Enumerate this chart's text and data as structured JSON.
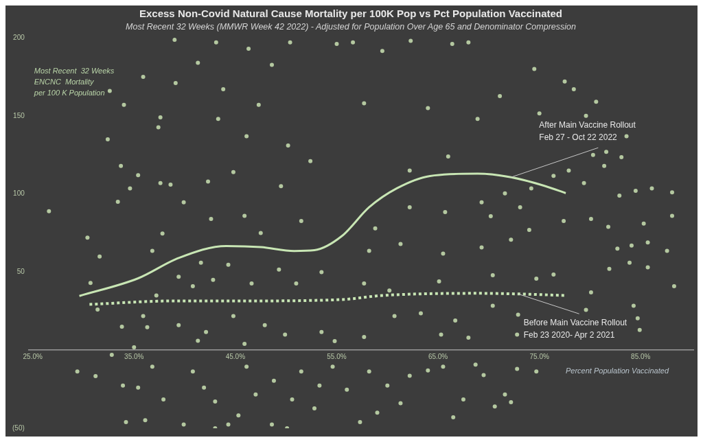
{
  "chart_data": {
    "type": "scatter",
    "title": "Excess Non-Covid Natural Cause Mortality per 100K Pop vs Pct Population Vaccinated",
    "subtitle": "Most Recent 32 Weeks (MMWR Week 42 2022) - Adjusted for Population Over Age 65 and Denominator Compression",
    "xlabel": "Percent Population Vaccinated",
    "ylabel": "Most Recent  32 Weeks\nENCNC  Mortality\nper 100 K Population",
    "xlim": [
      24.6,
      90.2
    ],
    "ylim": [
      -50,
      200
    ],
    "xticks": [
      {
        "value": 25,
        "label": "25.0%"
      },
      {
        "value": 35,
        "label": "35.0%"
      },
      {
        "value": 45,
        "label": "45.0%"
      },
      {
        "value": 55,
        "label": "55.0%"
      },
      {
        "value": 65,
        "label": "65.0%"
      },
      {
        "value": 75,
        "label": "75.0%"
      },
      {
        "value": 85,
        "label": "85.0%"
      }
    ],
    "yticks": [
      {
        "value": -50,
        "label": "(50)"
      },
      50,
      100,
      150,
      200
    ],
    "grid": false,
    "legend": false,
    "series": [
      {
        "type": "scatter",
        "marker": "circle",
        "color": "#b4c8a0",
        "x": [
          26.6,
          32.4,
          32.6,
          34.0,
          35.9,
          39.0,
          39.1,
          43.1,
          46.3,
          50.4,
          55.0,
          30.4,
          31.6,
          30.7,
          31.4,
          33.8,
          33.4,
          34.6,
          35.4,
          33.7,
          37.4,
          37.6,
          38.6,
          37.6,
          41.3,
          43.8,
          48.6,
          47.3,
          43.3,
          46.1,
          50.2,
          52.4,
          44.8,
          49.5,
          42.3,
          39.9,
          42.6,
          45.9,
          51.5,
          47.5,
          37.8,
          36.8,
          41.6,
          44.3,
          49.3,
          53.5,
          39.4,
          42.8,
          46.6,
          51.0,
          37.2,
          40.8,
          35.9,
          39.4,
          42.1,
          44.8,
          47.9,
          49.9,
          53.5,
          54.8,
          36.3,
          35.0,
          41.3,
          45.9,
          56.6,
          62.3,
          66.4,
          68.0,
          59.5,
          74.5,
          77.5,
          78.4,
          80.6,
          57.7,
          64.0,
          71.1,
          75.0,
          79.6,
          83.6,
          81.6,
          83.1,
          80.3,
          81.4,
          77.9,
          76.4,
          86.1,
          88.1,
          84.5,
          82.9,
          79.4,
          88.1,
          85.3,
          81.8,
          80.1,
          77.4,
          87.6,
          85.7,
          84.1,
          82.7,
          83.9,
          85.7,
          81.9,
          88.3,
          80.1,
          79.6,
          84.3,
          84.7,
          84.9,
          68.9,
          66.0,
          62.2,
          74.2,
          71.6,
          69.3,
          65.7,
          62.2,
          58.8,
          70.2,
          73.1,
          74.0,
          72.2,
          69.3,
          65.5,
          61.3,
          58.2,
          76.4,
          74.7,
          70.4,
          65.1,
          60.2,
          57.7,
          70.4,
          72.9,
          66.7,
          63.3,
          60.7,
          57.7,
          65.3,
          68.0,
          72.8,
          29.4,
          31.2,
          32.8,
          33.9,
          34.2,
          36.1,
          36.8,
          35.4,
          37.9,
          39.9,
          40.8,
          41.9,
          43.0,
          44.3,
          43.0,
          46.1,
          45.3,
          47.0,
          48.8,
          48.6,
          50.1,
          50.6,
          51.5,
          52.8,
          53.3,
          54.6,
          56.0,
          57.3,
          58.2,
          59.0,
          60.0,
          61.3,
          62.2,
          64.0,
          65.5,
          66.5,
          67.5,
          68.7,
          69.5,
          71.6,
          72.2,
          70.6,
          72.8,
          74.7
        ],
        "values": [
          88.9,
          135,
          166,
          157,
          175,
          198.7,
          171,
          197,
          193,
          197,
          196,
          72,
          60,
          43,
          26,
          15,
          95,
          103.6,
          112,
          118,
          142.7,
          149,
          106,
          107,
          184,
          167,
          182.7,
          157,
          148,
          137,
          131,
          121,
          114,
          105,
          108,
          94.7,
          84,
          86,
          82.7,
          75,
          74.7,
          63.6,
          56,
          54.7,
          51.6,
          50,
          47,
          45,
          42.7,
          42.7,
          35,
          41,
          21.8,
          16,
          11.6,
          21.8,
          16,
          10,
          11.6,
          5.8,
          14.7,
          1.8,
          6,
          4,
          197,
          198,
          196,
          197,
          191.5,
          180,
          172,
          167,
          159,
          158,
          155,
          162.7,
          151.6,
          150,
          137,
          127,
          123.6,
          125,
          118,
          115,
          111.6,
          103.6,
          101,
          102,
          99,
          107,
          86,
          81,
          79,
          84,
          82.7,
          63.6,
          69,
          67,
          65,
          56,
          53,
          52,
          41,
          37,
          25.8,
          28.4,
          20.4,
          12.9,
          148,
          124,
          115,
          103.6,
          100.4,
          94.7,
          88.4,
          91.5,
          78,
          85.8,
          91.5,
          77,
          70.7,
          65.8,
          61.8,
          68,
          63.6,
          48.4,
          45.8,
          48,
          44,
          38.2,
          42.7,
          28.4,
          22.7,
          19,
          23.6,
          21.8,
          8.4,
          10,
          8,
          10,
          -13.6,
          -16.6,
          -3,
          -22.6,
          -46,
          -44.8,
          -10.6,
          -24,
          -31.5,
          -47.6,
          -13.6,
          -24,
          -50,
          -47.6,
          -32.9,
          -10.6,
          -41.8,
          -28.4,
          -19.6,
          -47.6,
          -50,
          -31.5,
          -13.6,
          -37.3,
          -22.6,
          -10.6,
          -25.3,
          -46,
          -13.6,
          -40,
          -22.6,
          -34,
          -16.4,
          -13,
          -10.6,
          -43,
          -31.5,
          -9.3,
          -16,
          -28.4,
          -33.3,
          -36,
          -12,
          -13.6
        ]
      },
      {
        "type": "line",
        "name": "After Main Vaccine Rollout\nFeb 27 - Oct 22 2022",
        "marker": "none",
        "line_style": "solid",
        "color": "#c8e6b4",
        "x": [
          29.6,
          35.4,
          39.4,
          44.1,
          47.5,
          50.8,
          52.8,
          55.5,
          58.2,
          60.9,
          64.2,
          68.9,
          72.2,
          75.6,
          77.6
        ],
        "values": [
          34.7,
          46,
          59,
          66.7,
          66,
          63.5,
          64,
          73,
          91.5,
          103.5,
          111.5,
          113,
          110.7,
          105,
          100.5
        ]
      },
      {
        "type": "line",
        "name": "Before Main Vaccine Rollout\nFeb 23 2020- Apr 2 2021",
        "marker": "none",
        "line_style": "dotted",
        "color": "#c8e6b4",
        "x": [
          30.6,
          38.8,
          45.5,
          55.5,
          59.5,
          68.9,
          72.9,
          77.6
        ],
        "values": [
          29.3,
          31.5,
          31.5,
          32.4,
          35,
          36.4,
          36,
          35
        ]
      }
    ]
  }
}
